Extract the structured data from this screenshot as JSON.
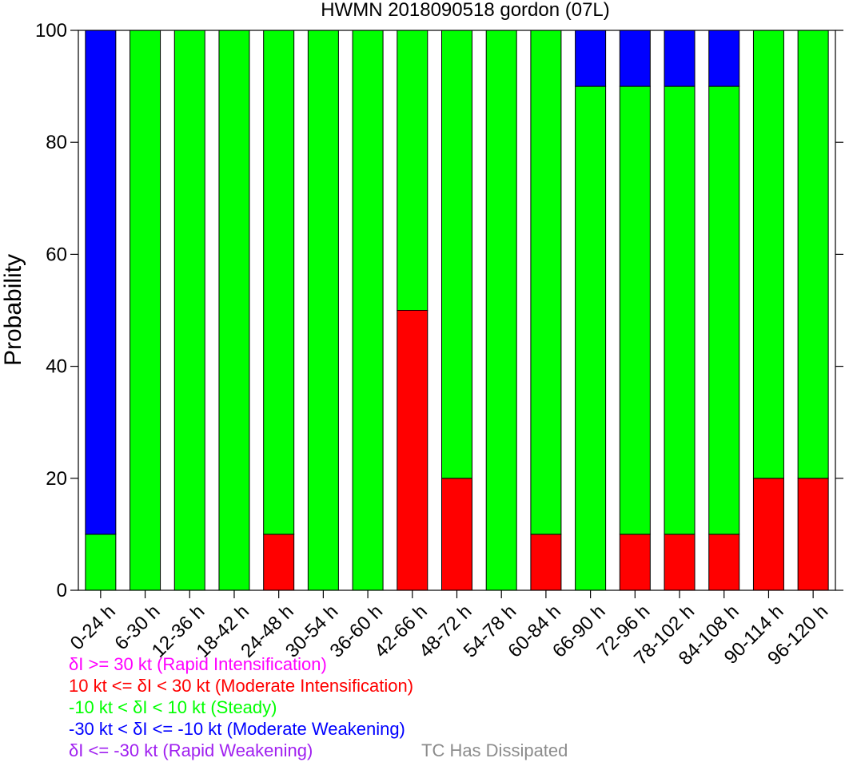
{
  "colors": {
    "ri": "#ff00ff",
    "mi": "#ff0000",
    "steady": "#00ff00",
    "mw": "#0000ff",
    "rw": "#a020f0",
    "dissipated": "#8c8c8c"
  },
  "legend": {
    "ri": "δI >= 30 kt (Rapid Intensification)",
    "mi": "10 kt <= δI < 30 kt (Moderate Intensification)",
    "steady": "-10 kt < δI < 10 kt (Steady)",
    "mw": "-30 kt < δI <= -10 kt (Moderate Weakening)",
    "rw": "δI <= -30 kt (Rapid Weakening)",
    "dissipated": "TC Has Dissipated"
  },
  "chart_data": {
    "type": "bar",
    "stacked": true,
    "title": "HWMN 2018090518 gordon (07L)",
    "xlabel": "",
    "ylabel": "Probability",
    "ylim": [
      0,
      100
    ],
    "yticks": [
      0,
      20,
      40,
      60,
      80,
      100
    ],
    "categories": [
      "0-24 h",
      "6-30 h",
      "12-36 h",
      "18-42 h",
      "24-48 h",
      "30-54 h",
      "36-60 h",
      "42-66 h",
      "48-72 h",
      "54-78 h",
      "60-84 h",
      "66-90 h",
      "72-96 h",
      "78-102 h",
      "84-108 h",
      "90-114 h",
      "96-120 h"
    ],
    "series": [
      {
        "key": "rw",
        "values": [
          0,
          0,
          0,
          0,
          0,
          0,
          0,
          0,
          0,
          0,
          0,
          0,
          0,
          0,
          0,
          0,
          0
        ]
      },
      {
        "key": "mi",
        "values": [
          0,
          0,
          0,
          0,
          10,
          0,
          0,
          50,
          20,
          0,
          10,
          0,
          10,
          10,
          10,
          20,
          20
        ]
      },
      {
        "key": "steady",
        "values": [
          10,
          100,
          100,
          100,
          90,
          100,
          100,
          50,
          80,
          100,
          90,
          90,
          80,
          80,
          80,
          80,
          80
        ]
      },
      {
        "key": "mw",
        "values": [
          90,
          0,
          0,
          0,
          0,
          0,
          0,
          0,
          0,
          0,
          0,
          10,
          10,
          10,
          10,
          0,
          0
        ]
      },
      {
        "key": "ri",
        "values": [
          0,
          0,
          0,
          0,
          0,
          0,
          0,
          0,
          0,
          0,
          0,
          0,
          0,
          0,
          0,
          0,
          0
        ]
      }
    ],
    "grid": false,
    "legend_position": "bottom-left"
  }
}
